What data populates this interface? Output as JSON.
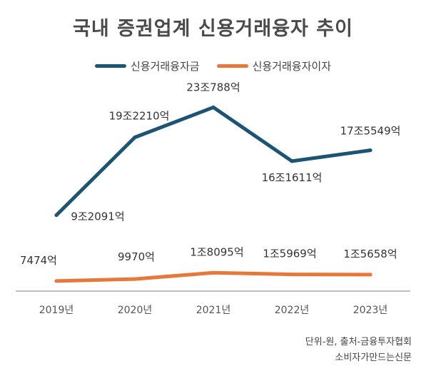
{
  "title": "국내 증권업계 신용거래융자 추이",
  "colors": {
    "loan": "#1b5573",
    "interest": "#e8783a",
    "axis": "#aaaaaa"
  },
  "footnote": {
    "line1": "단위-원, 출처-금융투자협회",
    "line2": "소비자가만드는신문"
  },
  "chart_data": {
    "type": "line",
    "categories": [
      "2019년",
      "2020년",
      "2021년",
      "2022년",
      "2023년"
    ],
    "series": [
      {
        "name": "신용거래융자금",
        "unit": "억원",
        "values": [
          92091,
          192210,
          230788,
          161611,
          175549
        ],
        "labels": [
          "9조2091억",
          "19조2210억",
          "23조788억",
          "16조1611억",
          "17조5549억"
        ]
      },
      {
        "name": "신용거래융자이자",
        "unit": "억원",
        "values": [
          7474,
          9970,
          18095,
          15969,
          15658
        ],
        "labels": [
          "7474억",
          "9970억",
          "1조8095억",
          "1조5969억",
          "1조5658억"
        ]
      }
    ],
    "legend_position": "top-center",
    "grid": false
  }
}
